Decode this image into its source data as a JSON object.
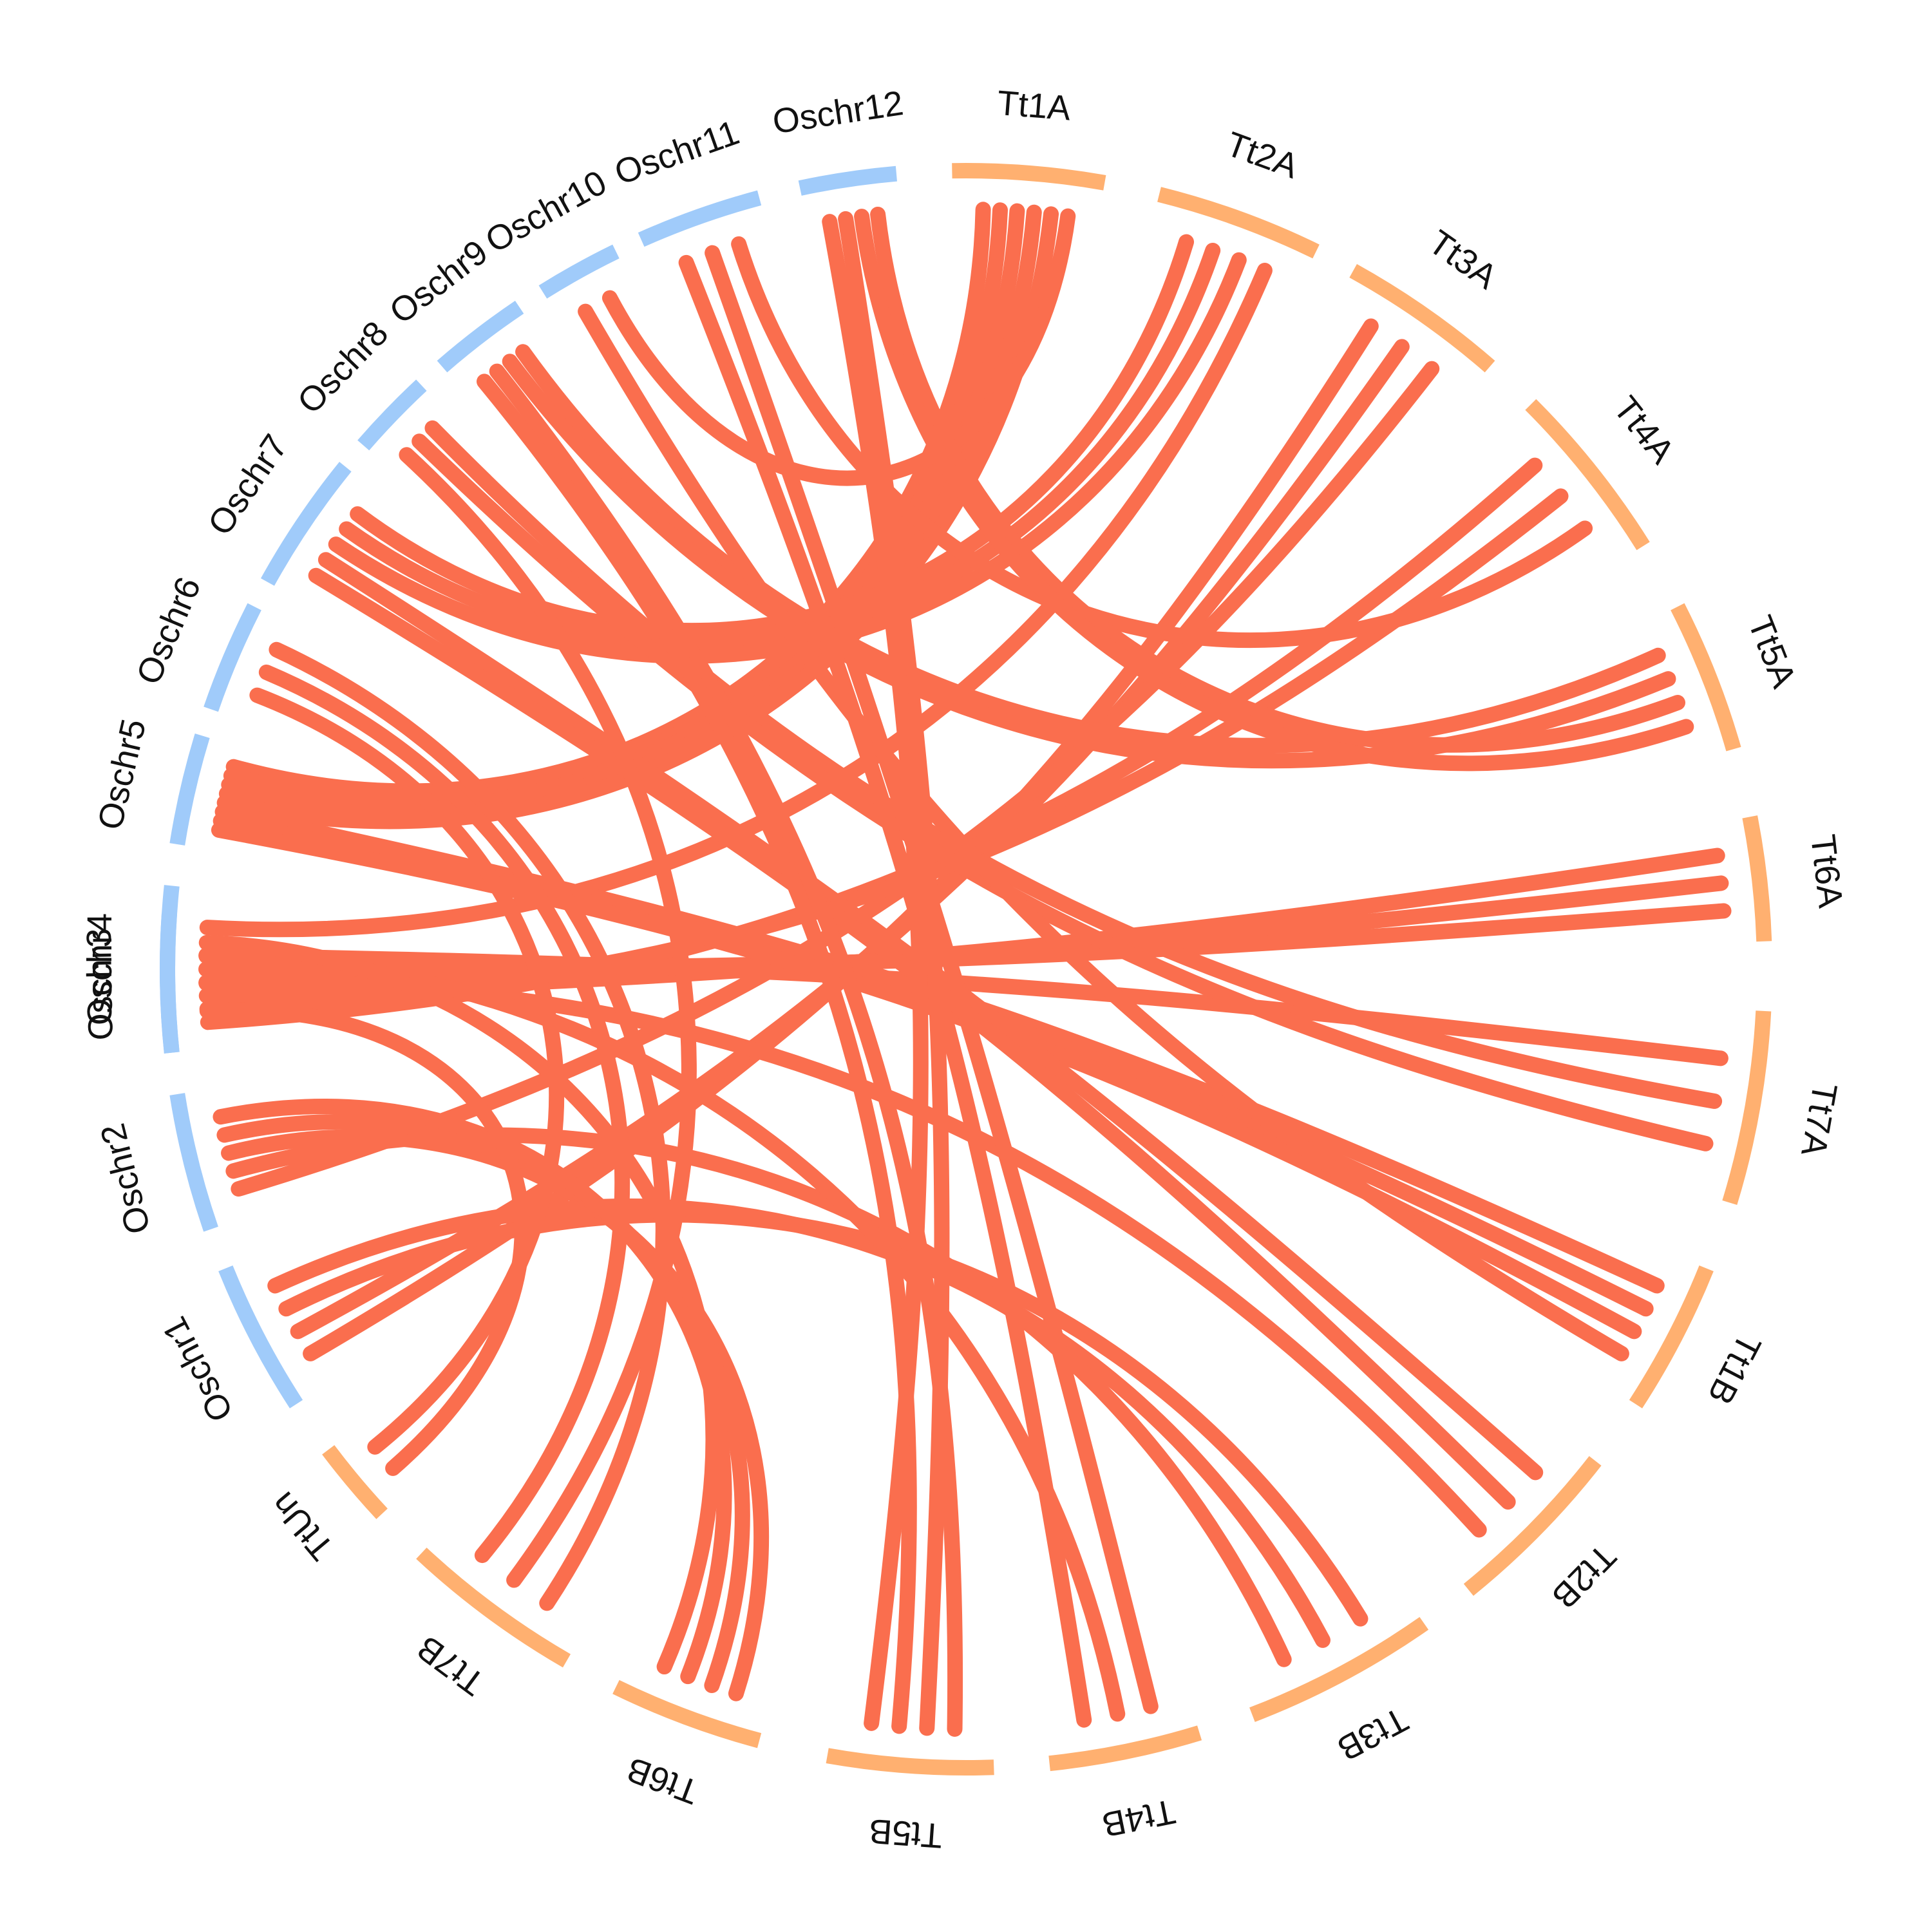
{
  "chart_data": {
    "type": "circos",
    "title": "",
    "colors": {
      "group_A": "#ffb070",
      "group_B": "#a0cbfa",
      "link": "#fa6e4e"
    },
    "segments": [
      {
        "label": "Tt1A",
        "group": "A",
        "start": 91,
        "end": 80
      },
      {
        "label": "Tt2A",
        "group": "A",
        "start": 76,
        "end": 64
      },
      {
        "label": "Tt3A",
        "group": "A",
        "start": 61,
        "end": 49
      },
      {
        "label": "Tt4A",
        "group": "A",
        "start": 45,
        "end": 32
      },
      {
        "label": "Tt5A",
        "group": "A",
        "start": 27,
        "end": 16
      },
      {
        "label": "Tt6A",
        "group": "A",
        "start": 11,
        "end": 2
      },
      {
        "label": "Tt7A",
        "group": "A",
        "start": -3,
        "end": -17
      },
      {
        "label": "Tt1B",
        "group": "A",
        "start": -22,
        "end": -33
      },
      {
        "label": "Tt2B",
        "group": "A",
        "start": -38,
        "end": -51
      },
      {
        "label": "Tt3B",
        "group": "A",
        "start": -55,
        "end": -69
      },
      {
        "label": "Tt4B",
        "group": "A",
        "start": -73,
        "end": -84
      },
      {
        "label": "Tt5B",
        "group": "A",
        "start": -88,
        "end": -100
      },
      {
        "label": "Tt6B",
        "group": "A",
        "start": -105,
        "end": -116
      },
      {
        "label": "Tt7B",
        "group": "A",
        "start": -120,
        "end": -133
      },
      {
        "label": "TtUn",
        "group": "A",
        "start": -137,
        "end": -143
      },
      {
        "label": "Oschr1",
        "group": "B",
        "start": -147,
        "end": -158
      },
      {
        "label": "Oschr2",
        "group": "B",
        "start": -161,
        "end": -171
      },
      {
        "label": "Oschr3",
        "group": "B",
        "start": -174,
        "end": -184
      },
      {
        "label": "Oschr4",
        "group": "B",
        "start": 174,
        "end": 186
      },
      {
        "label": "Oschr5",
        "group": "B",
        "start": 163,
        "end": 171
      },
      {
        "label": "Oschr6",
        "group": "B",
        "start": 153,
        "end": 161
      },
      {
        "label": "Oschr7",
        "group": "B",
        "start": 141,
        "end": 151
      },
      {
        "label": "Oschr8",
        "group": "B",
        "start": 133,
        "end": 139
      },
      {
        "label": "Oschr9",
        "group": "B",
        "start": 124,
        "end": 131
      },
      {
        "label": "Oschr10",
        "group": "B",
        "start": 116,
        "end": 122
      },
      {
        "label": "Oschr11",
        "group": "B",
        "start": 105,
        "end": 114
      },
      {
        "label": "Oschr12",
        "group": "B",
        "start": 95,
        "end": 102
      }
    ],
    "links": [
      {
        "from": "Tt1A",
        "to": "Oschr5"
      },
      {
        "from": "Tt1A",
        "to": "Oschr5"
      },
      {
        "from": "Tt1A",
        "to": "Oschr5"
      },
      {
        "from": "Tt1A",
        "to": "Oschr5"
      },
      {
        "from": "Tt1A",
        "to": "Oschr5"
      },
      {
        "from": "Tt1A",
        "to": "Oschr10"
      },
      {
        "from": "Tt2A",
        "to": "Oschr7"
      },
      {
        "from": "Tt2A",
        "to": "Oschr7"
      },
      {
        "from": "Tt2A",
        "to": "Oschr7"
      },
      {
        "from": "Tt2A",
        "to": "Oschr4"
      },
      {
        "from": "Tt3A",
        "to": "Oschr1"
      },
      {
        "from": "Tt3A",
        "to": "Oschr1"
      },
      {
        "from": "Tt3A",
        "to": "Oschr2"
      },
      {
        "from": "Tt4A",
        "to": "Oschr3"
      },
      {
        "from": "Tt4A",
        "to": "Oschr3"
      },
      {
        "from": "Tt4A",
        "to": "Oschr11"
      },
      {
        "from": "Tt5A",
        "to": "Oschr9"
      },
      {
        "from": "Tt5A",
        "to": "Oschr9"
      },
      {
        "from": "Tt5A",
        "to": "Oschr12"
      },
      {
        "from": "Tt5A",
        "to": "Oschr12"
      },
      {
        "from": "Tt6A",
        "to": "Oschr3"
      },
      {
        "from": "Tt6A",
        "to": "Oschr3"
      },
      {
        "from": "Tt6A",
        "to": "Oschr3"
      },
      {
        "from": "Tt7A",
        "to": "Oschr4"
      },
      {
        "from": "Tt7A",
        "to": "Oschr8"
      },
      {
        "from": "Tt7A",
        "to": "Oschr8"
      },
      {
        "from": "Tt1B",
        "to": "Oschr5"
      },
      {
        "from": "Tt1B",
        "to": "Oschr5"
      },
      {
        "from": "Tt1B",
        "to": "Oschr5"
      },
      {
        "from": "Tt1B",
        "to": "Oschr10"
      },
      {
        "from": "Tt2B",
        "to": "Oschr7"
      },
      {
        "from": "Tt2B",
        "to": "Oschr7"
      },
      {
        "from": "Tt2B",
        "to": "Oschr4"
      },
      {
        "from": "Tt3B",
        "to": "Oschr1"
      },
      {
        "from": "Tt3B",
        "to": "Oschr1"
      },
      {
        "from": "Tt3B",
        "to": "Oschr2"
      },
      {
        "from": "Tt4B",
        "to": "Oschr11"
      },
      {
        "from": "Tt4B",
        "to": "Oschr3"
      },
      {
        "from": "Tt4B",
        "to": "Oschr11"
      },
      {
        "from": "Tt5B",
        "to": "Oschr9"
      },
      {
        "from": "Tt5B",
        "to": "Oschr12"
      },
      {
        "from": "Tt5B",
        "to": "Oschr9"
      },
      {
        "from": "Tt5B",
        "to": "Oschr12"
      },
      {
        "from": "Tt6B",
        "to": "Oschr2"
      },
      {
        "from": "Tt6B",
        "to": "Oschr2"
      },
      {
        "from": "Tt6B",
        "to": "Oschr2"
      },
      {
        "from": "Tt6B",
        "to": "Oschr3"
      },
      {
        "from": "Tt7B",
        "to": "Oschr6"
      },
      {
        "from": "Tt7B",
        "to": "Oschr8"
      },
      {
        "from": "Tt7B",
        "to": "Oschr6"
      },
      {
        "from": "TtUn",
        "to": "Oschr4"
      },
      {
        "from": "TtUn",
        "to": "Oschr6"
      }
    ]
  }
}
